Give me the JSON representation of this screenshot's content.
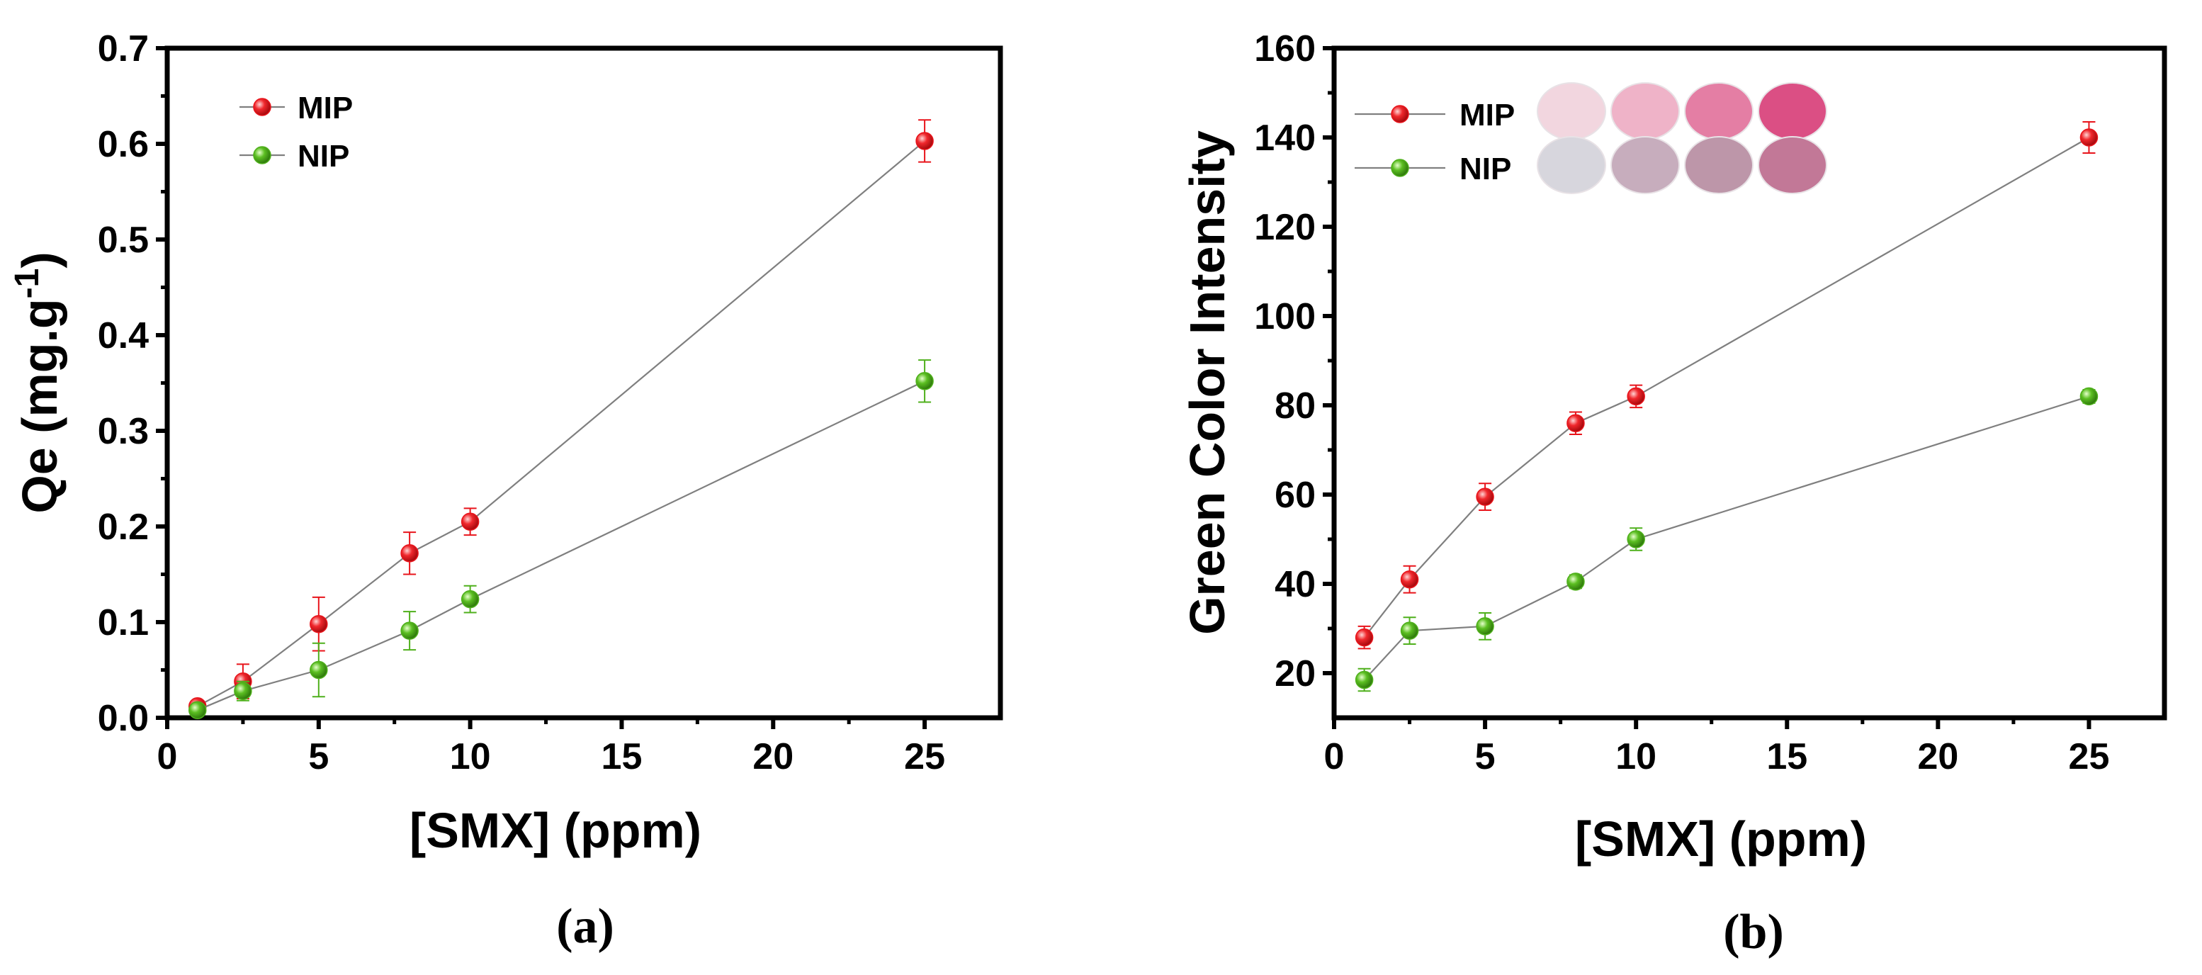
{
  "colors": {
    "mip": "#e8141b",
    "nip": "#4fb01c",
    "line": "#7f7f7f",
    "axis": "#000000"
  },
  "chart_data": [
    {
      "id": "a",
      "panel_label": "(a)",
      "type": "line",
      "title": "",
      "xlabel": "[SMX] (ppm)",
      "ylabel_main": "Qe (mg.g",
      "ylabel_sup": "-1",
      "ylabel_close": ")",
      "xlim": [
        0,
        27.5
      ],
      "ylim": [
        0,
        0.7
      ],
      "xticks": [
        0,
        5,
        10,
        15,
        20,
        25
      ],
      "xtick_labels": [
        "0",
        "5",
        "10",
        "15",
        "20",
        "25"
      ],
      "yticks": [
        0,
        0.1,
        0.2,
        0.3,
        0.4,
        0.5,
        0.6,
        0.7
      ],
      "ytick_labels": [
        "0.0",
        "0.1",
        "0.2",
        "0.3",
        "0.4",
        "0.5",
        "0.6",
        "0.7"
      ],
      "legend_position": "top-left",
      "series": [
        {
          "name": "MIP",
          "color_key": "mip",
          "x": [
            1,
            2.5,
            5,
            8,
            10,
            25
          ],
          "y": [
            0.012,
            0.038,
            0.098,
            0.172,
            0.205,
            0.603
          ],
          "err": [
            0.004,
            0.018,
            0.028,
            0.022,
            0.014,
            0.022
          ]
        },
        {
          "name": "NIP",
          "color_key": "nip",
          "x": [
            1,
            2.5,
            5,
            8,
            10,
            25
          ],
          "y": [
            0.008,
            0.028,
            0.05,
            0.091,
            0.124,
            0.352
          ],
          "err": [
            0.003,
            0.01,
            0.028,
            0.02,
            0.014,
            0.022
          ]
        }
      ]
    },
    {
      "id": "b",
      "panel_label": "(b)",
      "type": "line",
      "title": "",
      "xlabel": "[SMX] (ppm)",
      "ylabel_main": "Green Color Intensity",
      "xlim": [
        0,
        27.5
      ],
      "ylim": [
        10,
        160
      ],
      "xticks": [
        0,
        5,
        10,
        15,
        20,
        25
      ],
      "xtick_labels": [
        "0",
        "5",
        "10",
        "15",
        "20",
        "25"
      ],
      "yticks": [
        20,
        40,
        60,
        80,
        100,
        120,
        140,
        160
      ],
      "ytick_labels": [
        "20",
        "40",
        "60",
        "80",
        "100",
        "120",
        "140",
        "160"
      ],
      "legend_position": "top-left",
      "swatches": {
        "MIP": [
          "#f2d6df",
          "#efb3c8",
          "#e47ea4",
          "#db4f84"
        ],
        "NIP": [
          "#d7d6dd",
          "#c7adbd",
          "#bd96a9",
          "#c27897"
        ]
      },
      "series": [
        {
          "name": "MIP",
          "color_key": "mip",
          "x": [
            1,
            2.5,
            5,
            8,
            10,
            25
          ],
          "y": [
            28,
            41,
            59.5,
            76,
            82,
            140
          ],
          "err": [
            2.5,
            3,
            3,
            2.5,
            2.5,
            3.5
          ]
        },
        {
          "name": "NIP",
          "color_key": "nip",
          "x": [
            1,
            2.5,
            5,
            8,
            10,
            25
          ],
          "y": [
            18.5,
            29.5,
            30.5,
            40.5,
            50,
            82
          ],
          "err": [
            2.5,
            3,
            3,
            1.5,
            2.5,
            1.5
          ]
        }
      ]
    }
  ]
}
